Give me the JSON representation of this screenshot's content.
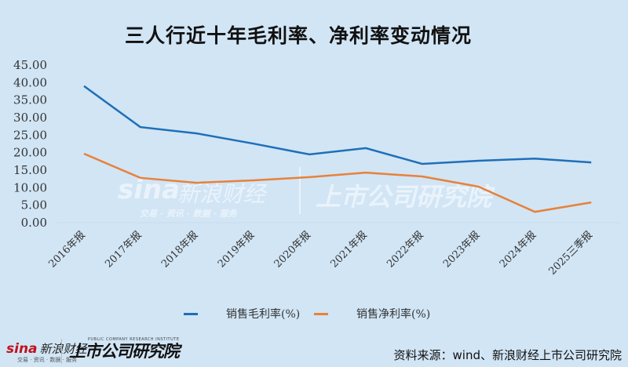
{
  "title": "三人行近十年毛利率、净利率变动情况",
  "chart_data": {
    "type": "line",
    "title": "三人行近十年毛利率、净利率变动情况",
    "xlabel": "",
    "ylabel": "",
    "ylim": [
      0,
      45
    ],
    "yticks": [
      "0.00",
      "5.00",
      "10.00",
      "15.00",
      "20.00",
      "25.00",
      "30.00",
      "35.00",
      "40.00",
      "45.00"
    ],
    "grid": false,
    "legend_position": "bottom",
    "categories": [
      "2016年报",
      "2017年报",
      "2018年报",
      "2019年报",
      "2020年报",
      "2021年报",
      "2022年报",
      "2023年报",
      "2024年报",
      "2025三季报"
    ],
    "series": [
      {
        "name": "销售毛利率(%)",
        "color": "#1f6fb8",
        "values": [
          39.0,
          27.3,
          25.5,
          22.6,
          19.5,
          21.3,
          16.8,
          17.7,
          18.3,
          17.2
        ]
      },
      {
        "name": "销售净利率(%)",
        "color": "#e8813a",
        "values": [
          19.7,
          12.8,
          11.4,
          12.1,
          13.0,
          14.3,
          13.2,
          10.3,
          3.1,
          5.8
        ]
      }
    ]
  },
  "legend": {
    "items": [
      {
        "label": "销售毛利率(%)",
        "color": "#1f6fb8"
      },
      {
        "label": "销售净利率(%)",
        "color": "#e8813a"
      }
    ]
  },
  "watermark": {
    "sina": "sina",
    "sina_cn": "新浪财经",
    "sina_sub": "交易 · 资讯 · 数据 · 服务",
    "institute": "上市公司研究院"
  },
  "footer": {
    "logo_sina": "sina",
    "logo_sina_cn": "新浪财经",
    "logo_sina_sub": "交易 · 资讯 · 数据 · 服务",
    "logo_institute": "上市公司研究院",
    "logo_institute_sub": "PUBLIC COMPANY RESEARCH INSTITUTE",
    "source": "资料来源：wind、新浪财经上市公司研究院"
  }
}
